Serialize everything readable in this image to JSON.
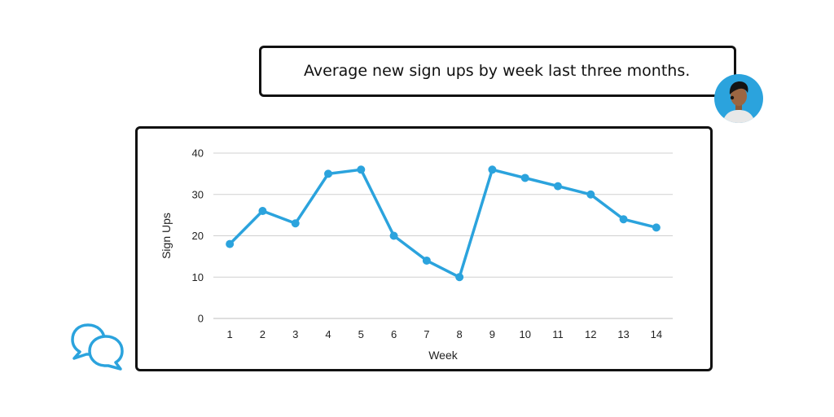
{
  "prompt": {
    "text": "Average new sign ups by week last three months."
  },
  "icons": {
    "avatar": "user-avatar-icon",
    "chat": "chat-bubbles-icon"
  },
  "colors": {
    "series": "#2ba3dd",
    "grid": "#d0d0d0",
    "avatar_bg": "#2ba3dd"
  },
  "chart_data": {
    "type": "line",
    "x": [
      1,
      2,
      3,
      4,
      5,
      6,
      7,
      8,
      9,
      10,
      11,
      12,
      13,
      14
    ],
    "series": [
      {
        "values": [
          18,
          26,
          23,
          35,
          36,
          20,
          14,
          10,
          36,
          34,
          32,
          30,
          24,
          22
        ]
      }
    ],
    "xlabel": "Week",
    "ylabel": "Sign Ups",
    "ylim": [
      0,
      40
    ],
    "yticks": [
      0,
      10,
      20,
      30,
      40
    ],
    "grid": true,
    "legend": "none"
  }
}
